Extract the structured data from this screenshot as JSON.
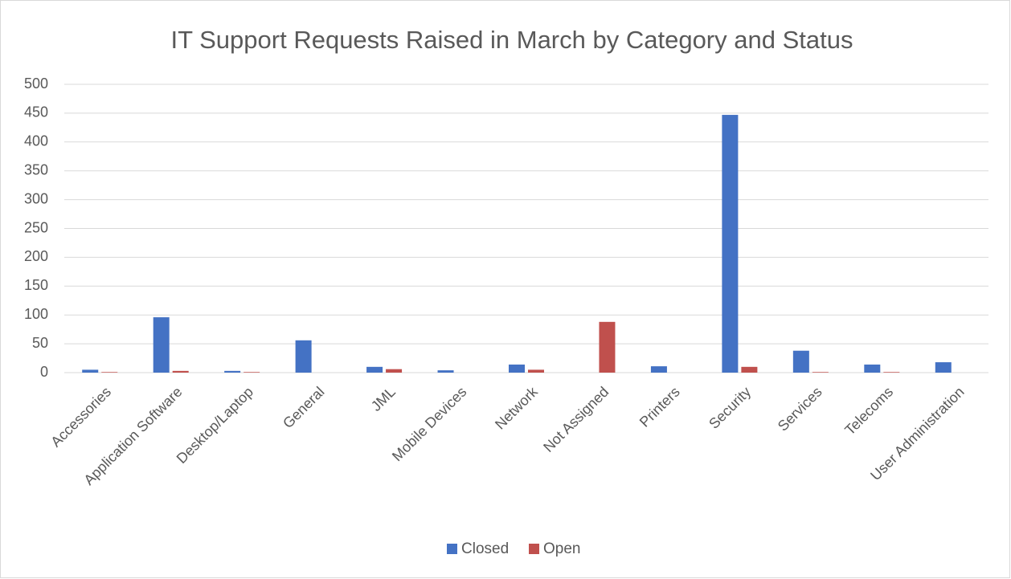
{
  "chart_data": {
    "type": "bar",
    "title": "IT Support Requests Raised in March by Category and Status",
    "categories": [
      "Accessories",
      "Application Software",
      "Desktop/Laptop",
      "General",
      "JML",
      "Mobile Devices",
      "Network",
      "Not Assigned",
      "Printers",
      "Security",
      "Services",
      "Telecoms",
      "User Administration"
    ],
    "series": [
      {
        "name": "Closed",
        "color": "#4472c4",
        "values": [
          5,
          96,
          3,
          56,
          10,
          4,
          14,
          0,
          11,
          447,
          38,
          14,
          18
        ]
      },
      {
        "name": "Open",
        "color": "#c0504d",
        "values": [
          1,
          3,
          1,
          0,
          6,
          0,
          5,
          88,
          0,
          10,
          1,
          1,
          0
        ]
      }
    ],
    "ylim": [
      0,
      500
    ],
    "yticks": [
      0,
      50,
      100,
      150,
      200,
      250,
      300,
      350,
      400,
      450,
      500
    ],
    "grid": true,
    "legend": "bottom"
  }
}
